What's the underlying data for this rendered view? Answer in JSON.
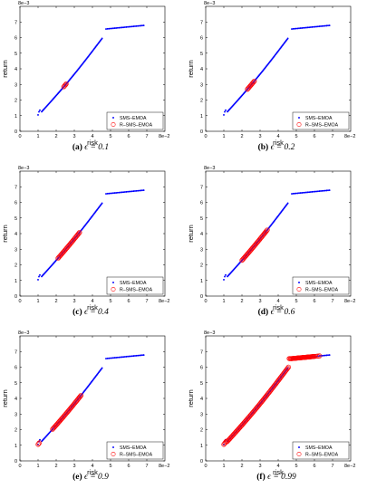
{
  "chart_data": [
    {
      "type": "scatter",
      "caption": {
        "letter": "(a)",
        "eq": "ϵ = 0.1"
      },
      "xlabel": "risk",
      "ylabel": "return",
      "x_exponent": "8e−2",
      "y_exponent": "8e−3",
      "xticks": [
        "0",
        "1",
        "2",
        "3",
        "4",
        "5",
        "6",
        "7"
      ],
      "yticks": [
        "0",
        "1",
        "2",
        "3",
        "4",
        "5",
        "6",
        "7"
      ],
      "xlim": [
        0,
        8
      ],
      "ylim": [
        0,
        8
      ],
      "legend_position": "bottom-right",
      "series": [
        {
          "name": "SMS–EMOA",
          "marker": "dot",
          "color": "#0000ff"
        },
        {
          "name": "R–SMS–EMOA",
          "marker": "circle",
          "color": "#ff0000",
          "ranges": [
            [
              2.42,
              2.58
            ]
          ]
        }
      ]
    },
    {
      "type": "scatter",
      "caption": {
        "letter": "(b)",
        "eq": "ϵ = 0.2"
      },
      "xlabel": "risk",
      "ylabel": "return",
      "x_exponent": "8e−2",
      "y_exponent": "8e−3",
      "xticks": [
        "0",
        "1",
        "2",
        "3",
        "4",
        "5",
        "6",
        "7"
      ],
      "yticks": [
        "0",
        "1",
        "2",
        "3",
        "4",
        "5",
        "6",
        "7"
      ],
      "xlim": [
        0,
        8
      ],
      "ylim": [
        0,
        8
      ],
      "legend_position": "bottom-right",
      "series": [
        {
          "name": "SMS–EMOA",
          "marker": "dot",
          "color": "#0000ff"
        },
        {
          "name": "R–SMS–EMOA",
          "marker": "circle",
          "color": "#ff0000",
          "ranges": [
            [
              2.3,
              2.7
            ]
          ]
        }
      ]
    },
    {
      "type": "scatter",
      "caption": {
        "letter": "(c)",
        "eq": "ϵ = 0.4"
      },
      "xlabel": "risk",
      "ylabel": "return",
      "x_exponent": "8e−2",
      "y_exponent": "8e−3",
      "xticks": [
        "0",
        "1",
        "2",
        "3",
        "4",
        "5",
        "6",
        "7"
      ],
      "yticks": [
        "0",
        "1",
        "2",
        "3",
        "4",
        "5",
        "6",
        "7"
      ],
      "xlim": [
        0,
        8
      ],
      "ylim": [
        0,
        8
      ],
      "legend_position": "bottom-right",
      "series": [
        {
          "name": "SMS–EMOA",
          "marker": "dot",
          "color": "#0000ff"
        },
        {
          "name": "R–SMS–EMOA",
          "marker": "circle",
          "color": "#ff0000",
          "ranges": [
            [
              2.1,
              3.3
            ]
          ]
        }
      ]
    },
    {
      "type": "scatter",
      "caption": {
        "letter": "(d)",
        "eq": "ϵ = 0.6"
      },
      "xlabel": "risk",
      "ylabel": "return",
      "x_exponent": "8e−2",
      "y_exponent": "8e−3",
      "xticks": [
        "0",
        "1",
        "2",
        "3",
        "4",
        "5",
        "6",
        "7"
      ],
      "yticks": [
        "0",
        "1",
        "2",
        "3",
        "4",
        "5",
        "6",
        "7"
      ],
      "xlim": [
        0,
        8
      ],
      "ylim": [
        0,
        8
      ],
      "legend_position": "bottom-right",
      "series": [
        {
          "name": "SMS–EMOA",
          "marker": "dot",
          "color": "#0000ff"
        },
        {
          "name": "R–SMS–EMOA",
          "marker": "circle",
          "color": "#ff0000",
          "ranges": [
            [
              2.0,
              3.4
            ]
          ]
        }
      ]
    },
    {
      "type": "scatter",
      "caption": {
        "letter": "(e)",
        "eq": "ϵ = 0.9"
      },
      "xlabel": "risk",
      "ylabel": "return",
      "x_exponent": "8e−2",
      "y_exponent": "8e−3",
      "xticks": [
        "0",
        "1",
        "2",
        "3",
        "4",
        "5",
        "6",
        "7"
      ],
      "yticks": [
        "0",
        "1",
        "2",
        "3",
        "4",
        "5",
        "6",
        "7"
      ],
      "xlim": [
        0,
        8
      ],
      "ylim": [
        0,
        8
      ],
      "legend_position": "bottom-right",
      "series": [
        {
          "name": "SMS–EMOA",
          "marker": "dot",
          "color": "#0000ff"
        },
        {
          "name": "R–SMS–EMOA",
          "marker": "circle",
          "color": "#ff0000",
          "ranges": [
            [
              1.0,
              1.1
            ],
            [
              1.8,
              3.4
            ]
          ]
        }
      ]
    },
    {
      "type": "scatter",
      "caption": {
        "letter": "(f)",
        "eq": "ϵ = 0.99"
      },
      "xlabel": "risk",
      "ylabel": "return",
      "x_exponent": "8e−2",
      "y_exponent": "8e−3",
      "xticks": [
        "0",
        "1",
        "2",
        "3",
        "4",
        "5",
        "6",
        "7"
      ],
      "yticks": [
        "0",
        "1",
        "2",
        "3",
        "4",
        "5",
        "6",
        "7"
      ],
      "xlim": [
        0,
        8
      ],
      "ylim": [
        0,
        8
      ],
      "legend_position": "bottom-right",
      "series": [
        {
          "name": "SMS–EMOA",
          "marker": "dot",
          "color": "#0000ff"
        },
        {
          "name": "R–SMS–EMOA",
          "marker": "circle",
          "color": "#ff0000",
          "ranges": [
            [
              1.0,
              6.0
            ]
          ]
        }
      ]
    }
  ]
}
